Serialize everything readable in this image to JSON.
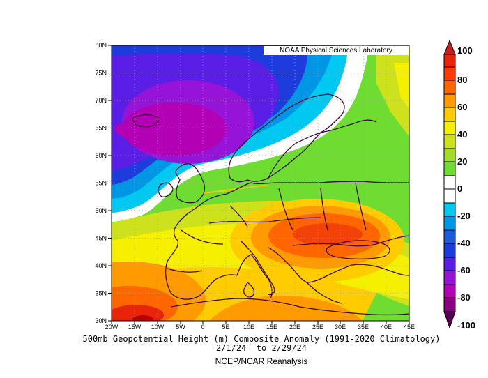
{
  "credit": "NOAA Physical Sciences Laboratory",
  "caption": {
    "title": "500mb Geopotential Height (m) Composite Anomaly (1991-2020 Climatology)",
    "dates": "2/1/24  to 2/29/24",
    "source": "NCEP/NCAR Reanalysis"
  },
  "map": {
    "lon_range": [
      -20,
      45
    ],
    "lat_range": [
      30,
      80
    ],
    "lon_labels": [
      "20W",
      "15W",
      "10W",
      "5W",
      "0",
      "5E",
      "10E",
      "15E",
      "20E",
      "25E",
      "30E",
      "35E",
      "40E",
      "45E"
    ],
    "lat_labels": [
      "80N",
      "75N",
      "70N",
      "65N",
      "60N",
      "55N",
      "50N",
      "45N",
      "40N",
      "35N",
      "30N"
    ],
    "grid": "dotted",
    "features": [
      {
        "name": "negative-anomaly-center",
        "lon": -5,
        "lat": 64,
        "value": -80
      },
      {
        "name": "positive-anomaly-center-balkans",
        "lon": 27,
        "lat": 46,
        "value": 80
      },
      {
        "name": "positive-anomaly-center-iberia",
        "lon": -15,
        "lat": 32,
        "value": 100
      }
    ]
  },
  "colorbar": {
    "labels": [
      "100",
      "80",
      "60",
      "40",
      "20",
      "0",
      "-20",
      "-40",
      "-60",
      "-80",
      "-100"
    ],
    "colors": [
      "#e8240c",
      "#ff6600",
      "#ff9a00",
      "#ffcc00",
      "#f5f000",
      "#cde11c",
      "#6edc30",
      "#ffffff",
      "#00c8f0",
      "#0096e6",
      "#1e3cdc",
      "#5a1ee6",
      "#9614d7",
      "#b400b4",
      "#8c0082",
      "#5a0050"
    ]
  }
}
